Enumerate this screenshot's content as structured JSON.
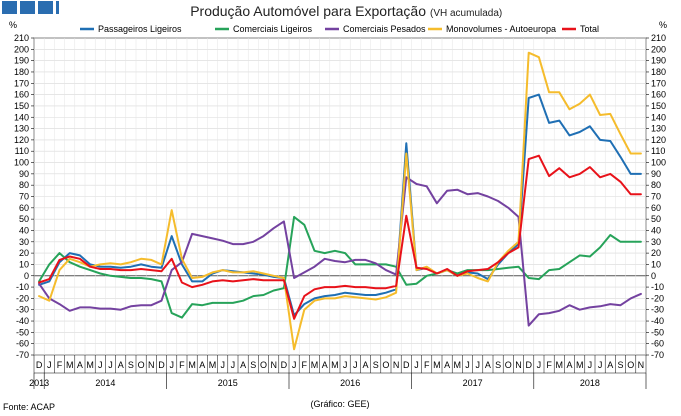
{
  "header": {
    "title": "Produção Automóvel para Exportação",
    "subtitle": "(VH acumulada)"
  },
  "footer": {
    "source": "Fonte: ACAP",
    "credit": "(Gráfico: GEE)"
  },
  "chart_data": {
    "type": "line",
    "title": "Produção Automóvel para Exportação",
    "subtitle": "(VH acumulada)",
    "ylabel_left": "%",
    "ylabel_right": "%",
    "ylim": [
      -70,
      210
    ],
    "ytick_step": 10,
    "grid": true,
    "legend_position": "top",
    "x_month_labels": [
      "D",
      "J",
      "F",
      "M",
      "A",
      "M",
      "J",
      "J",
      "A",
      "S",
      "O",
      "N",
      "D",
      "J",
      "F",
      "M",
      "A",
      "M",
      "J",
      "J",
      "A",
      "S",
      "O",
      "N",
      "D",
      "J",
      "F",
      "M",
      "A",
      "M",
      "J",
      "J",
      "A",
      "S",
      "O",
      "N",
      "D",
      "J",
      "F",
      "M",
      "A",
      "M",
      "J",
      "J",
      "A",
      "S",
      "O",
      "N",
      "D",
      "J",
      "F",
      "M",
      "A",
      "M",
      "J",
      "J",
      "A",
      "S",
      "O",
      "N"
    ],
    "x_year_labels": [
      {
        "label": "2013",
        "start": 0,
        "end": 0
      },
      {
        "label": "2014",
        "start": 1,
        "end": 12
      },
      {
        "label": "2015",
        "start": 13,
        "end": 24
      },
      {
        "label": "2016",
        "start": 25,
        "end": 36
      },
      {
        "label": "2017",
        "start": 37,
        "end": 48
      },
      {
        "label": "2018",
        "start": 49,
        "end": 59
      }
    ],
    "series": [
      {
        "name": "Passageiros Ligeiros",
        "color": "#1f6fb4",
        "values": [
          -8,
          -5,
          12,
          20,
          18,
          10,
          8,
          8,
          7,
          8,
          10,
          8,
          7,
          35,
          10,
          -5,
          -5,
          2,
          5,
          4,
          3,
          2,
          1,
          -1,
          -2,
          -35,
          -25,
          -20,
          -18,
          -17,
          -15,
          -16,
          -17,
          -17,
          -15,
          -12,
          117,
          5,
          7,
          2,
          5,
          0,
          3,
          2,
          -3,
          10,
          20,
          28,
          157,
          160,
          135,
          137,
          124,
          127,
          132,
          120,
          119,
          105,
          90,
          90
        ]
      },
      {
        "name": "Comerciais Ligeiros",
        "color": "#27a35a",
        "values": [
          -5,
          10,
          20,
          12,
          8,
          5,
          2,
          0,
          -1,
          -2,
          -2,
          -3,
          -5,
          -33,
          -37,
          -25,
          -26,
          -24,
          -24,
          -24,
          -22,
          -18,
          -17,
          -13,
          -11,
          52,
          45,
          22,
          20,
          22,
          20,
          10,
          10,
          10,
          10,
          8,
          -8,
          -7,
          0,
          2,
          5,
          2,
          5,
          5,
          5,
          6,
          7,
          8,
          -2,
          -3,
          5,
          6,
          12,
          18,
          17,
          25,
          36,
          30,
          30,
          30
        ]
      },
      {
        "name": "Comerciais Pesados",
        "color": "#7442a0",
        "values": [
          -7,
          -20,
          -25,
          -31,
          -28,
          -28,
          -29,
          -29,
          -30,
          -27,
          -26,
          -26,
          -22,
          5,
          12,
          37,
          35,
          33,
          31,
          28,
          28,
          30,
          35,
          42,
          48,
          -2,
          3,
          8,
          15,
          13,
          12,
          14,
          14,
          11,
          5,
          1,
          87,
          81,
          79,
          64,
          75,
          76,
          72,
          73,
          70,
          66,
          60,
          52,
          -44,
          -34,
          -33,
          -31,
          -26,
          -30,
          -28,
          -27,
          -25,
          -26,
          -20,
          -16
        ]
      },
      {
        "name": "Monovolumes - Autoeuropa",
        "color": "#f5bc2c",
        "values": [
          -18,
          -22,
          5,
          15,
          12,
          8,
          10,
          11,
          10,
          12,
          15,
          14,
          10,
          58,
          15,
          -2,
          -1,
          3,
          5,
          3,
          3,
          4,
          2,
          0,
          -2,
          -65,
          -30,
          -22,
          -20,
          -20,
          -18,
          -19,
          -20,
          -21,
          -19,
          -15,
          108,
          5,
          8,
          2,
          5,
          0,
          2,
          -2,
          -5,
          12,
          22,
          30,
          197,
          193,
          162,
          162,
          147,
          152,
          160,
          142,
          143,
          125,
          108,
          108
        ]
      },
      {
        "name": "Total",
        "color": "#e8121a",
        "values": [
          -6,
          -3,
          14,
          17,
          15,
          8,
          6,
          6,
          5,
          5,
          6,
          5,
          4,
          15,
          -6,
          -10,
          -8,
          -5,
          -4,
          -5,
          -4,
          -3,
          -4,
          -4,
          -4,
          -38,
          -18,
          -12,
          -10,
          -10,
          -9,
          -10,
          -10,
          -11,
          -11,
          -9,
          53,
          7,
          6,
          2,
          6,
          0,
          4,
          5,
          6,
          12,
          20,
          25,
          103,
          106,
          88,
          95,
          87,
          90,
          96,
          87,
          90,
          83,
          72,
          72
        ]
      }
    ]
  }
}
